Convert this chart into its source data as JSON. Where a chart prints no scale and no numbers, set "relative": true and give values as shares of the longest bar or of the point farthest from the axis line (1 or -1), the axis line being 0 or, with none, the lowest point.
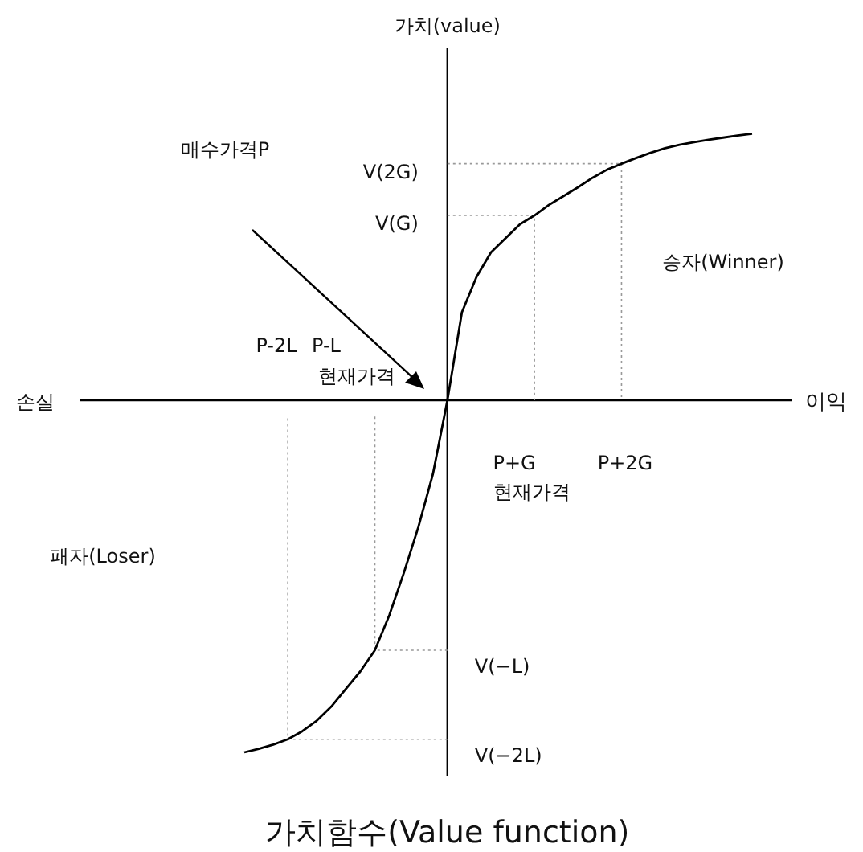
{
  "chart_data": {
    "type": "line",
    "relative": true,
    "title": "가치함수(Value function)",
    "xlabel": "이익",
    "categories": [
      null,
      null,
      null,
      null,
      null,
      null,
      null,
      null,
      null,
      null,
      null,
      null,
      null,
      null,
      null,
      null,
      null,
      null,
      null,
      null,
      null,
      null,
      null,
      null,
      null,
      null,
      null,
      null,
      null,
      null,
      null,
      null,
      null,
      null,
      null,
      null
    ],
    "series": [
      {
        "color": "#000000",
        "values": [
          -1.0,
          -0.99,
          -0.978,
          -0.963,
          -0.94,
          -0.91,
          -0.87,
          -0.82,
          -0.77,
          -0.71,
          -0.61,
          -0.49,
          -0.36,
          -0.21,
          0,
          0.25,
          0.35,
          0.42,
          0.46,
          0.5,
          0.525,
          0.555,
          0.58,
          0.605,
          0.632,
          0.655,
          0.672,
          0.688,
          0.703,
          0.716,
          0.726,
          0.733,
          0.74,
          0.746,
          0.752,
          0.757
        ]
      }
    ],
    "ref_lines": [
      {
        "axis": "y",
        "value": 0.672,
        "label": "V(2G)",
        "color": "#999999",
        "line_style": "dotted"
      },
      {
        "axis": "y",
        "value": 0.525,
        "label": "V(G)",
        "color": "#999999",
        "line_style": "dotted"
      },
      {
        "axis": "y",
        "value": -0.71,
        "label": "V(−L)",
        "color": "#999999",
        "line_style": "dotted"
      },
      {
        "axis": "y",
        "value": -0.963,
        "label": "V(−2L)",
        "color": "#999999",
        "line_style": "dotted"
      }
    ],
    "annotations": [
      "매수가격P",
      "승자(Winner)",
      "P-2L",
      "P-L",
      "현재가격",
      "P+G",
      "P+2G",
      "현재가격",
      "패자(Loser)",
      "손실",
      "가치(value)"
    ]
  }
}
